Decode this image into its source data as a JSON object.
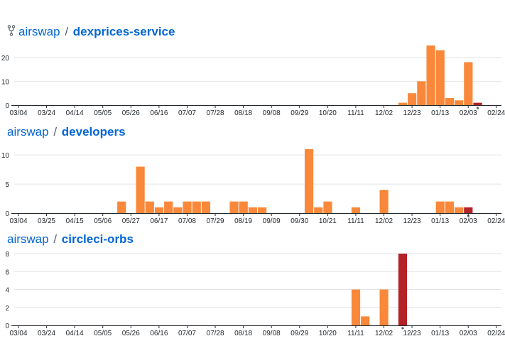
{
  "colors": {
    "bar": "#f9883b",
    "current": "#b22227",
    "grid": "#e1e4e8",
    "axis": "#24292e",
    "link": "#0366d6"
  },
  "icons": {
    "fork": "repo-forked-icon"
  },
  "repos": [
    {
      "owner": "airswap",
      "separator": "/",
      "name": "dexprices-service",
      "has_icon": true
    },
    {
      "owner": "airswap",
      "separator": "/",
      "name": "developers",
      "has_icon": false
    },
    {
      "owner": "airswap",
      "separator": "/",
      "name": "circleci-orbs",
      "has_icon": false
    }
  ],
  "chart_data": [
    {
      "type": "bar",
      "title": "airswap / dexprices-service",
      "ylim": [
        0,
        25
      ],
      "yticks": [
        0,
        10,
        20
      ],
      "xticklabels": [
        "03/04",
        "03/24",
        "04/14",
        "05/05",
        "05/26",
        "06/16",
        "07/07",
        "07/28",
        "08/18",
        "09/08",
        "09/29",
        "10/20",
        "11/11",
        "12/02",
        "12/23",
        "01/13",
        "02/03",
        "02/24"
      ],
      "bars": [
        {
          "week": 41,
          "value": 1,
          "current": false
        },
        {
          "week": 42,
          "value": 5,
          "current": false
        },
        {
          "week": 43,
          "value": 10,
          "current": false
        },
        {
          "week": 44,
          "value": 25,
          "current": false
        },
        {
          "week": 45,
          "value": 23,
          "current": false
        },
        {
          "week": 46,
          "value": 3,
          "current": false
        },
        {
          "week": 47,
          "value": 2,
          "current": false
        },
        {
          "week": 48,
          "value": 18,
          "current": false
        },
        {
          "week": 49,
          "value": 1,
          "current": true
        }
      ]
    },
    {
      "type": "bar",
      "title": "airswap / developers",
      "ylim": [
        0,
        11
      ],
      "yticks": [
        0,
        5,
        10
      ],
      "xticklabels": [
        "03/04",
        "03/25",
        "04/15",
        "05/06",
        "05/27",
        "06/17",
        "07/08",
        "07/29",
        "08/19",
        "09/09",
        "09/30",
        "10/21",
        "11/11",
        "12/02",
        "12/23",
        "01/13",
        "02/03",
        "02/24"
      ],
      "bars": [
        {
          "week": 11,
          "value": 2,
          "current": false
        },
        {
          "week": 13,
          "value": 8,
          "current": false
        },
        {
          "week": 14,
          "value": 2,
          "current": false
        },
        {
          "week": 15,
          "value": 1,
          "current": false
        },
        {
          "week": 16,
          "value": 2,
          "current": false
        },
        {
          "week": 17,
          "value": 1,
          "current": false
        },
        {
          "week": 18,
          "value": 2,
          "current": false
        },
        {
          "week": 19,
          "value": 2,
          "current": false
        },
        {
          "week": 20,
          "value": 2,
          "current": false
        },
        {
          "week": 23,
          "value": 2,
          "current": false
        },
        {
          "week": 24,
          "value": 2,
          "current": false
        },
        {
          "week": 25,
          "value": 1,
          "current": false
        },
        {
          "week": 26,
          "value": 1,
          "current": false
        },
        {
          "week": 31,
          "value": 11,
          "current": false
        },
        {
          "week": 32,
          "value": 1,
          "current": false
        },
        {
          "week": 33,
          "value": 2,
          "current": false
        },
        {
          "week": 36,
          "value": 1,
          "current": false
        },
        {
          "week": 39,
          "value": 4,
          "current": false
        },
        {
          "week": 45,
          "value": 2,
          "current": false
        },
        {
          "week": 46,
          "value": 2,
          "current": false
        },
        {
          "week": 47,
          "value": 1,
          "current": false
        },
        {
          "week": 48,
          "value": 1,
          "current": true
        }
      ]
    },
    {
      "type": "bar",
      "title": "airswap / circleci-orbs",
      "ylim": [
        0,
        8
      ],
      "yticks": [
        0,
        2,
        4,
        6,
        8
      ],
      "xticklabels": [
        "03/04",
        "03/24",
        "04/14",
        "05/05",
        "05/26",
        "06/16",
        "07/07",
        "07/28",
        "08/18",
        "09/08",
        "09/29",
        "10/20",
        "11/11",
        "12/02",
        "12/23",
        "01/13",
        "02/03",
        "02/24"
      ],
      "bars": [
        {
          "week": 36,
          "value": 4,
          "current": false
        },
        {
          "week": 37,
          "value": 1,
          "current": false
        },
        {
          "week": 39,
          "value": 4,
          "current": false
        },
        {
          "week": 41,
          "value": 8,
          "current": true
        }
      ]
    }
  ]
}
